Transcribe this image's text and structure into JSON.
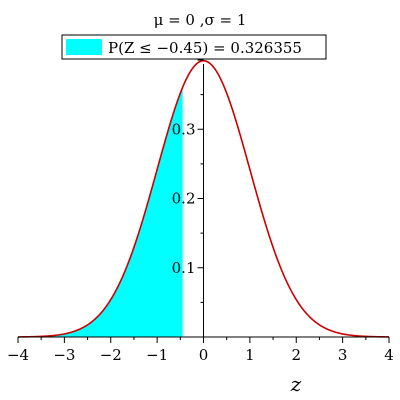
{
  "chart_data": {
    "type": "area",
    "title": "μ = 0 ,σ = 1",
    "xlabel": "z",
    "ylabel": "",
    "xlim": [
      -4,
      4
    ],
    "ylim": [
      0,
      0.4
    ],
    "x_ticks": [
      -4,
      -3,
      -2,
      -1,
      0,
      1,
      2,
      3,
      4
    ],
    "x_tick_labels": [
      "−4",
      "−3",
      "−2",
      "−1",
      "0",
      "1",
      "2",
      "3",
      "4"
    ],
    "y_ticks": [
      0.1,
      0.2,
      0.3
    ],
    "y_tick_labels": [
      "0.1",
      "0.2",
      "0.3"
    ],
    "grid": false,
    "legend_position": "top",
    "series": [
      {
        "name": "",
        "kind": "line",
        "distribution": "normal",
        "mean": 0,
        "sd": 1,
        "color": "#cc0000"
      },
      {
        "name": "P(Z ≤ −0.45) = 0.326355",
        "kind": "shaded-area",
        "from": -4,
        "to": -0.45,
        "color": "#00ffff"
      }
    ],
    "legend": {
      "label": "P(Z ≤ −0.45) = 0.326355",
      "color": "#00ffff"
    }
  }
}
